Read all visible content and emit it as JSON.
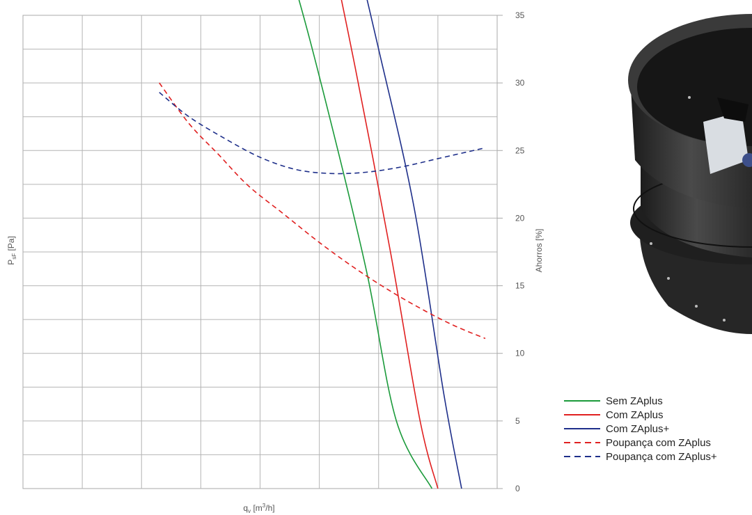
{
  "chart_data": {
    "type": "line",
    "xlabel": {
      "main": "q",
      "sub": "v",
      "unit_pre": " [m",
      "sup": "3",
      "unit_post": "/h]"
    },
    "ylabel_left": {
      "main": "P",
      "sub": "sF",
      "unit": " [Pa]"
    },
    "ylabel_right": "Ahorros [%]",
    "x_gridlines": 8,
    "y_gridlines": 14,
    "right_axis": {
      "ylim": [
        0,
        35
      ],
      "ticks": [
        "0",
        "5",
        "10",
        "15",
        "20",
        "25",
        "30",
        "35"
      ]
    },
    "grid": true,
    "legend_position": "bottom-right",
    "series": [
      {
        "name": "Sem ZAplus",
        "color": "#1a9a3a",
        "dash": false,
        "points": [
          [
            1.4,
            26.4
          ],
          [
            2.0,
            25.3
          ],
          [
            2.7,
            23.4
          ],
          [
            3.3,
            21.0
          ],
          [
            4.0,
            18.0
          ],
          [
            4.6,
            14.8
          ],
          [
            5.2,
            10.8
          ],
          [
            5.8,
            6.4
          ],
          [
            6.3,
            2.0
          ],
          [
            6.9,
            0.0
          ]
        ]
      },
      {
        "name": "Com ZAplus",
        "color": "#e02020",
        "dash": false,
        "points": [
          [
            2.0,
            33.5
          ],
          [
            2.6,
            32.0
          ],
          [
            3.2,
            28.8
          ],
          [
            3.8,
            25.5
          ],
          [
            4.4,
            21.8
          ],
          [
            5.0,
            17.5
          ],
          [
            5.6,
            12.5
          ],
          [
            6.2,
            7.0
          ],
          [
            6.7,
            2.0
          ],
          [
            7.0,
            0.0
          ]
        ]
      },
      {
        "name": "Com ZAplus+",
        "color": "#1e2f8a",
        "dash": false,
        "points": [
          [
            1.8,
            33.9
          ],
          [
            2.4,
            33.2
          ],
          [
            3.0,
            31.0
          ],
          [
            3.6,
            28.1
          ],
          [
            4.2,
            24.8
          ],
          [
            4.8,
            21.3
          ],
          [
            5.4,
            17.4
          ],
          [
            6.0,
            13.0
          ],
          [
            6.6,
            8.3
          ],
          [
            7.1,
            2.8
          ],
          [
            7.4,
            0.0
          ]
        ]
      }
    ],
    "savings_series": [
      {
        "name": "Poupança com ZAplus",
        "color": "#e02020",
        "dash": true,
        "points": [
          [
            2.3,
            30.0
          ],
          [
            2.8,
            27.0
          ],
          [
            3.3,
            24.7
          ],
          [
            3.8,
            22.4
          ],
          [
            4.4,
            20.3
          ],
          [
            5.0,
            18.2
          ],
          [
            5.6,
            16.3
          ],
          [
            6.2,
            14.6
          ],
          [
            6.8,
            13.1
          ],
          [
            7.3,
            12.0
          ],
          [
            7.8,
            11.1
          ]
        ]
      },
      {
        "name": "Poupança com ZAplus+",
        "color": "#1e2f8a",
        "dash": true,
        "points": [
          [
            2.3,
            29.3
          ],
          [
            2.8,
            27.5
          ],
          [
            3.4,
            25.9
          ],
          [
            4.0,
            24.5
          ],
          [
            4.6,
            23.6
          ],
          [
            5.2,
            23.3
          ],
          [
            5.8,
            23.4
          ],
          [
            6.4,
            23.8
          ],
          [
            7.0,
            24.4
          ],
          [
            7.8,
            25.2
          ]
        ]
      }
    ]
  },
  "legend": {
    "items": [
      {
        "label": "Sem ZAplus",
        "color": "#1a9a3a",
        "dash": false
      },
      {
        "label": "Com ZAplus",
        "color": "#e02020",
        "dash": false
      },
      {
        "label": "Com ZAplus+",
        "color": "#1e2f8a",
        "dash": false
      },
      {
        "label": "Poupança com ZAplus",
        "color": "#e02020",
        "dash": true
      },
      {
        "label": "Poupança com ZAplus+",
        "color": "#1e2f8a",
        "dash": true
      }
    ]
  },
  "product_image": {
    "icon": "axial-fan-product-photo",
    "color": "#2e2e2e"
  }
}
